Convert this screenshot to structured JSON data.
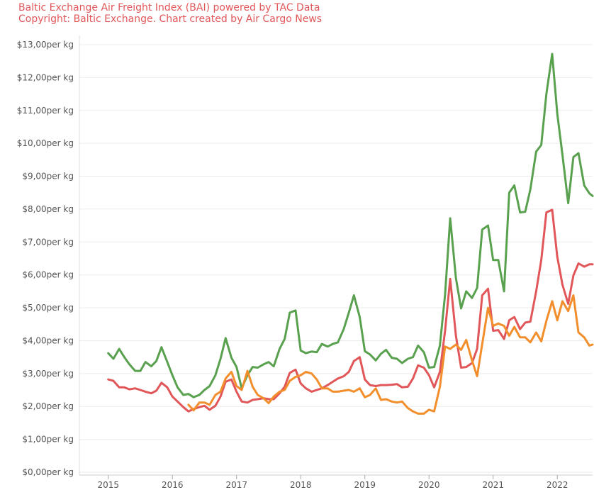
{
  "header": {
    "line1": "Baltic Exchange Air Freight Index (BAI) powered by TAC Data",
    "line2": "Copyright: Baltic Exchange. Chart created by Air Cargo News"
  },
  "chart_data": {
    "type": "line",
    "ylim": [
      0,
      13
    ],
    "xlim": [
      2014.55,
      2022.55
    ],
    "grid": true,
    "y_ticks": [
      {
        "value": 13,
        "label": "$13,00per kg"
      },
      {
        "value": 12,
        "label": "$12,00per kg"
      },
      {
        "value": 11,
        "label": "$11,00per kg"
      },
      {
        "value": 10,
        "label": "$10,00per kg"
      },
      {
        "value": 9,
        "label": "$9,00per kg"
      },
      {
        "value": 8,
        "label": "$8,00per kg"
      },
      {
        "value": 7,
        "label": "$7,00per kg"
      },
      {
        "value": 6,
        "label": "$6,00per kg"
      },
      {
        "value": 5,
        "label": "$5,00per kg"
      },
      {
        "value": 4,
        "label": "$4,00per kg"
      },
      {
        "value": 3,
        "label": "$3,00per kg"
      },
      {
        "value": 2,
        "label": "$2,00per kg"
      },
      {
        "value": 1,
        "label": "$1,00per kg"
      },
      {
        "value": 0,
        "label": "$0,00per kg"
      }
    ],
    "x_ticks": [
      {
        "value": 2015,
        "label": "2015"
      },
      {
        "value": 2016,
        "label": "2016"
      },
      {
        "value": 2017,
        "label": "2017"
      },
      {
        "value": 2018,
        "label": "2018"
      },
      {
        "value": 2019,
        "label": "2019"
      },
      {
        "value": 2020,
        "label": "2020"
      },
      {
        "value": 2021,
        "label": "2021"
      },
      {
        "value": 2022,
        "label": "2022"
      }
    ],
    "series": [
      {
        "color": "#59a14f",
        "points": [
          [
            2015.0,
            3.62
          ],
          [
            2015.08,
            3.45
          ],
          [
            2015.17,
            3.75
          ],
          [
            2015.25,
            3.5
          ],
          [
            2015.33,
            3.28
          ],
          [
            2015.42,
            3.08
          ],
          [
            2015.5,
            3.08
          ],
          [
            2015.58,
            3.35
          ],
          [
            2015.67,
            3.22
          ],
          [
            2015.75,
            3.38
          ],
          [
            2015.83,
            3.8
          ],
          [
            2015.92,
            3.35
          ],
          [
            2016.0,
            2.95
          ],
          [
            2016.08,
            2.58
          ],
          [
            2016.17,
            2.35
          ],
          [
            2016.25,
            2.38
          ],
          [
            2016.33,
            2.28
          ],
          [
            2016.42,
            2.35
          ],
          [
            2016.5,
            2.5
          ],
          [
            2016.58,
            2.62
          ],
          [
            2016.67,
            2.95
          ],
          [
            2016.75,
            3.45
          ],
          [
            2016.83,
            4.08
          ],
          [
            2016.92,
            3.48
          ],
          [
            2017.0,
            3.2
          ],
          [
            2017.08,
            2.55
          ],
          [
            2017.17,
            2.95
          ],
          [
            2017.25,
            3.2
          ],
          [
            2017.33,
            3.18
          ],
          [
            2017.42,
            3.28
          ],
          [
            2017.5,
            3.35
          ],
          [
            2017.58,
            3.22
          ],
          [
            2017.67,
            3.75
          ],
          [
            2017.75,
            4.05
          ],
          [
            2017.83,
            4.85
          ],
          [
            2017.92,
            4.92
          ],
          [
            2018.0,
            3.7
          ],
          [
            2018.08,
            3.62
          ],
          [
            2018.17,
            3.67
          ],
          [
            2018.25,
            3.65
          ],
          [
            2018.33,
            3.9
          ],
          [
            2018.42,
            3.82
          ],
          [
            2018.5,
            3.9
          ],
          [
            2018.58,
            3.95
          ],
          [
            2018.67,
            4.35
          ],
          [
            2018.75,
            4.85
          ],
          [
            2018.83,
            5.38
          ],
          [
            2018.92,
            4.72
          ],
          [
            2019.0,
            3.68
          ],
          [
            2019.08,
            3.58
          ],
          [
            2019.17,
            3.4
          ],
          [
            2019.25,
            3.6
          ],
          [
            2019.33,
            3.72
          ],
          [
            2019.42,
            3.48
          ],
          [
            2019.5,
            3.45
          ],
          [
            2019.58,
            3.32
          ],
          [
            2019.67,
            3.45
          ],
          [
            2019.75,
            3.5
          ],
          [
            2019.83,
            3.85
          ],
          [
            2019.92,
            3.65
          ],
          [
            2020.0,
            3.18
          ],
          [
            2020.08,
            3.2
          ],
          [
            2020.17,
            3.85
          ],
          [
            2020.25,
            5.4
          ],
          [
            2020.33,
            7.72
          ],
          [
            2020.42,
            5.9
          ],
          [
            2020.5,
            4.98
          ],
          [
            2020.58,
            5.5
          ],
          [
            2020.67,
            5.3
          ],
          [
            2020.75,
            5.6
          ],
          [
            2020.83,
            7.38
          ],
          [
            2020.92,
            7.5
          ],
          [
            2021.0,
            6.45
          ],
          [
            2021.08,
            6.45
          ],
          [
            2021.17,
            5.5
          ],
          [
            2021.25,
            8.5
          ],
          [
            2021.33,
            8.72
          ],
          [
            2021.42,
            7.9
          ],
          [
            2021.5,
            7.92
          ],
          [
            2021.58,
            8.6
          ],
          [
            2021.67,
            9.75
          ],
          [
            2021.75,
            9.95
          ],
          [
            2021.83,
            11.5
          ],
          [
            2021.92,
            12.72
          ],
          [
            2022.0,
            10.9
          ],
          [
            2022.08,
            9.65
          ],
          [
            2022.17,
            8.18
          ],
          [
            2022.25,
            9.58
          ],
          [
            2022.33,
            9.7
          ],
          [
            2022.42,
            8.72
          ],
          [
            2022.5,
            8.48
          ],
          [
            2022.55,
            8.4
          ]
        ]
      },
      {
        "color": "#e15759",
        "points": [
          [
            2015.0,
            2.82
          ],
          [
            2015.08,
            2.78
          ],
          [
            2015.17,
            2.58
          ],
          [
            2015.25,
            2.58
          ],
          [
            2015.33,
            2.52
          ],
          [
            2015.42,
            2.55
          ],
          [
            2015.5,
            2.5
          ],
          [
            2015.58,
            2.45
          ],
          [
            2015.67,
            2.4
          ],
          [
            2015.75,
            2.48
          ],
          [
            2015.83,
            2.72
          ],
          [
            2015.92,
            2.58
          ],
          [
            2016.0,
            2.3
          ],
          [
            2016.08,
            2.15
          ],
          [
            2016.17,
            1.98
          ],
          [
            2016.25,
            1.85
          ],
          [
            2016.33,
            1.92
          ],
          [
            2016.42,
            1.98
          ],
          [
            2016.5,
            2.02
          ],
          [
            2016.58,
            1.9
          ],
          [
            2016.67,
            2.02
          ],
          [
            2016.75,
            2.3
          ],
          [
            2016.83,
            2.75
          ],
          [
            2016.92,
            2.82
          ],
          [
            2017.0,
            2.45
          ],
          [
            2017.08,
            2.15
          ],
          [
            2017.17,
            2.12
          ],
          [
            2017.25,
            2.2
          ],
          [
            2017.33,
            2.22
          ],
          [
            2017.42,
            2.25
          ],
          [
            2017.5,
            2.22
          ],
          [
            2017.58,
            2.22
          ],
          [
            2017.67,
            2.4
          ],
          [
            2017.75,
            2.6
          ],
          [
            2017.83,
            3.02
          ],
          [
            2017.92,
            3.12
          ],
          [
            2018.0,
            2.7
          ],
          [
            2018.08,
            2.55
          ],
          [
            2018.17,
            2.45
          ],
          [
            2018.25,
            2.5
          ],
          [
            2018.33,
            2.55
          ],
          [
            2018.42,
            2.65
          ],
          [
            2018.5,
            2.75
          ],
          [
            2018.58,
            2.85
          ],
          [
            2018.67,
            2.92
          ],
          [
            2018.75,
            3.05
          ],
          [
            2018.83,
            3.38
          ],
          [
            2018.92,
            3.5
          ],
          [
            2019.0,
            2.82
          ],
          [
            2019.08,
            2.65
          ],
          [
            2019.17,
            2.62
          ],
          [
            2019.25,
            2.65
          ],
          [
            2019.33,
            2.65
          ],
          [
            2019.42,
            2.66
          ],
          [
            2019.5,
            2.68
          ],
          [
            2019.58,
            2.58
          ],
          [
            2019.67,
            2.6
          ],
          [
            2019.75,
            2.85
          ],
          [
            2019.83,
            3.25
          ],
          [
            2019.92,
            3.18
          ],
          [
            2020.0,
            2.95
          ],
          [
            2020.08,
            2.58
          ],
          [
            2020.17,
            3.05
          ],
          [
            2020.25,
            4.3
          ],
          [
            2020.33,
            5.88
          ],
          [
            2020.42,
            4.15
          ],
          [
            2020.5,
            3.18
          ],
          [
            2020.58,
            3.2
          ],
          [
            2020.67,
            3.32
          ],
          [
            2020.75,
            3.75
          ],
          [
            2020.83,
            5.38
          ],
          [
            2020.92,
            5.58
          ],
          [
            2021.0,
            4.3
          ],
          [
            2021.08,
            4.32
          ],
          [
            2021.17,
            4.05
          ],
          [
            2021.25,
            4.62
          ],
          [
            2021.33,
            4.72
          ],
          [
            2021.42,
            4.35
          ],
          [
            2021.5,
            4.55
          ],
          [
            2021.58,
            4.58
          ],
          [
            2021.67,
            5.5
          ],
          [
            2021.75,
            6.45
          ],
          [
            2021.83,
            7.9
          ],
          [
            2021.92,
            7.98
          ],
          [
            2022.0,
            6.55
          ],
          [
            2022.08,
            5.7
          ],
          [
            2022.17,
            5.12
          ],
          [
            2022.25,
            5.98
          ],
          [
            2022.33,
            6.35
          ],
          [
            2022.42,
            6.25
          ],
          [
            2022.5,
            6.32
          ],
          [
            2022.55,
            6.32
          ]
        ]
      },
      {
        "color": "#f28e2b",
        "points": [
          [
            2016.25,
            2.05
          ],
          [
            2016.33,
            1.88
          ],
          [
            2016.42,
            2.12
          ],
          [
            2016.5,
            2.12
          ],
          [
            2016.58,
            2.05
          ],
          [
            2016.67,
            2.35
          ],
          [
            2016.75,
            2.45
          ],
          [
            2016.83,
            2.85
          ],
          [
            2016.92,
            3.05
          ],
          [
            2017.0,
            2.62
          ],
          [
            2017.08,
            2.5
          ],
          [
            2017.17,
            3.08
          ],
          [
            2017.25,
            2.6
          ],
          [
            2017.33,
            2.35
          ],
          [
            2017.42,
            2.25
          ],
          [
            2017.5,
            2.1
          ],
          [
            2017.58,
            2.3
          ],
          [
            2017.67,
            2.45
          ],
          [
            2017.75,
            2.5
          ],
          [
            2017.83,
            2.78
          ],
          [
            2017.92,
            2.9
          ],
          [
            2018.0,
            2.95
          ],
          [
            2018.08,
            3.05
          ],
          [
            2018.17,
            3.0
          ],
          [
            2018.25,
            2.82
          ],
          [
            2018.33,
            2.55
          ],
          [
            2018.42,
            2.55
          ],
          [
            2018.5,
            2.45
          ],
          [
            2018.58,
            2.45
          ],
          [
            2018.67,
            2.48
          ],
          [
            2018.75,
            2.5
          ],
          [
            2018.83,
            2.45
          ],
          [
            2018.92,
            2.55
          ],
          [
            2019.0,
            2.28
          ],
          [
            2019.08,
            2.35
          ],
          [
            2019.17,
            2.55
          ],
          [
            2019.25,
            2.2
          ],
          [
            2019.33,
            2.22
          ],
          [
            2019.42,
            2.15
          ],
          [
            2019.5,
            2.12
          ],
          [
            2019.58,
            2.15
          ],
          [
            2019.67,
            1.95
          ],
          [
            2019.75,
            1.85
          ],
          [
            2019.83,
            1.78
          ],
          [
            2019.92,
            1.78
          ],
          [
            2020.0,
            1.9
          ],
          [
            2020.08,
            1.85
          ],
          [
            2020.17,
            2.6
          ],
          [
            2020.25,
            3.82
          ],
          [
            2020.33,
            3.75
          ],
          [
            2020.42,
            3.88
          ],
          [
            2020.5,
            3.72
          ],
          [
            2020.58,
            4.02
          ],
          [
            2020.67,
            3.4
          ],
          [
            2020.75,
            2.92
          ],
          [
            2020.83,
            3.9
          ],
          [
            2020.92,
            5.0
          ],
          [
            2021.0,
            4.45
          ],
          [
            2021.08,
            4.52
          ],
          [
            2021.17,
            4.45
          ],
          [
            2021.25,
            4.15
          ],
          [
            2021.33,
            4.42
          ],
          [
            2021.42,
            4.1
          ],
          [
            2021.5,
            4.1
          ],
          [
            2021.58,
            3.95
          ],
          [
            2021.67,
            4.25
          ],
          [
            2021.75,
            3.98
          ],
          [
            2021.83,
            4.6
          ],
          [
            2021.92,
            5.2
          ],
          [
            2022.0,
            4.62
          ],
          [
            2022.08,
            5.2
          ],
          [
            2022.17,
            4.9
          ],
          [
            2022.25,
            5.38
          ],
          [
            2022.33,
            4.25
          ],
          [
            2022.42,
            4.1
          ],
          [
            2022.5,
            3.85
          ],
          [
            2022.55,
            3.88
          ]
        ]
      }
    ]
  }
}
